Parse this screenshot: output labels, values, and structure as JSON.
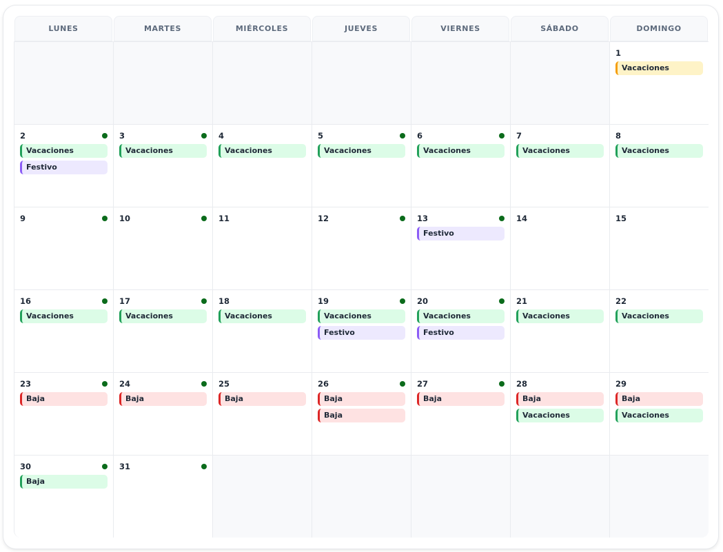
{
  "weekdays": [
    "LUNES",
    "MARTES",
    "MIÉRCOLES",
    "JUEVES",
    "VIERNES",
    "SÁBADO",
    "DOMINGO"
  ],
  "event_colors": {
    "green": "#22a05a",
    "purple": "#8b5cf6",
    "red": "#dc2626",
    "yellow": "#f59e0b"
  },
  "weeks": [
    [
      null,
      null,
      null,
      null,
      null,
      null,
      {
        "day": "1",
        "dot": false,
        "events": [
          {
            "label": "Vacaciones",
            "color": "yellow"
          }
        ]
      }
    ],
    [
      {
        "day": "2",
        "dot": true,
        "events": [
          {
            "label": "Vacaciones",
            "color": "green"
          },
          {
            "label": "Festivo",
            "color": "purple"
          }
        ]
      },
      {
        "day": "3",
        "dot": true,
        "events": [
          {
            "label": "Vacaciones",
            "color": "green"
          }
        ]
      },
      {
        "day": "4",
        "dot": false,
        "events": [
          {
            "label": "Vacaciones",
            "color": "green"
          }
        ]
      },
      {
        "day": "5",
        "dot": true,
        "events": [
          {
            "label": "Vacaciones",
            "color": "green"
          }
        ]
      },
      {
        "day": "6",
        "dot": true,
        "events": [
          {
            "label": "Vacaciones",
            "color": "green"
          }
        ]
      },
      {
        "day": "7",
        "dot": false,
        "events": [
          {
            "label": "Vacaciones",
            "color": "green"
          }
        ]
      },
      {
        "day": "8",
        "dot": false,
        "events": [
          {
            "label": "Vacaciones",
            "color": "green"
          }
        ]
      }
    ],
    [
      {
        "day": "9",
        "dot": true,
        "events": []
      },
      {
        "day": "10",
        "dot": true,
        "events": []
      },
      {
        "day": "11",
        "dot": false,
        "events": []
      },
      {
        "day": "12",
        "dot": true,
        "events": []
      },
      {
        "day": "13",
        "dot": true,
        "events": [
          {
            "label": "Festivo",
            "color": "purple"
          }
        ]
      },
      {
        "day": "14",
        "dot": false,
        "events": []
      },
      {
        "day": "15",
        "dot": false,
        "events": []
      }
    ],
    [
      {
        "day": "16",
        "dot": true,
        "events": [
          {
            "label": "Vacaciones",
            "color": "green"
          }
        ]
      },
      {
        "day": "17",
        "dot": true,
        "events": [
          {
            "label": "Vacaciones",
            "color": "green"
          }
        ]
      },
      {
        "day": "18",
        "dot": false,
        "events": [
          {
            "label": "Vacaciones",
            "color": "green"
          }
        ]
      },
      {
        "day": "19",
        "dot": true,
        "events": [
          {
            "label": "Vacaciones",
            "color": "green"
          },
          {
            "label": "Festivo",
            "color": "purple"
          }
        ]
      },
      {
        "day": "20",
        "dot": true,
        "events": [
          {
            "label": "Vacaciones",
            "color": "green"
          },
          {
            "label": "Festivo",
            "color": "purple"
          }
        ]
      },
      {
        "day": "21",
        "dot": false,
        "events": [
          {
            "label": "Vacaciones",
            "color": "green"
          }
        ]
      },
      {
        "day": "22",
        "dot": false,
        "events": [
          {
            "label": "Vacaciones",
            "color": "green"
          }
        ]
      }
    ],
    [
      {
        "day": "23",
        "dot": true,
        "events": [
          {
            "label": "Baja",
            "color": "red"
          }
        ]
      },
      {
        "day": "24",
        "dot": true,
        "events": [
          {
            "label": "Baja",
            "color": "red"
          }
        ]
      },
      {
        "day": "25",
        "dot": false,
        "events": [
          {
            "label": "Baja",
            "color": "red"
          }
        ]
      },
      {
        "day": "26",
        "dot": true,
        "events": [
          {
            "label": "Baja",
            "color": "red"
          },
          {
            "label": "Baja",
            "color": "red"
          }
        ]
      },
      {
        "day": "27",
        "dot": true,
        "events": [
          {
            "label": "Baja",
            "color": "red"
          }
        ]
      },
      {
        "day": "28",
        "dot": false,
        "events": [
          {
            "label": "Baja",
            "color": "red"
          },
          {
            "label": "Vacaciones",
            "color": "green"
          }
        ]
      },
      {
        "day": "29",
        "dot": false,
        "events": [
          {
            "label": "Baja",
            "color": "red"
          },
          {
            "label": "Vacaciones",
            "color": "green"
          }
        ]
      }
    ],
    [
      {
        "day": "30",
        "dot": true,
        "events": [
          {
            "label": "Baja",
            "color": "green"
          }
        ]
      },
      {
        "day": "31",
        "dot": true,
        "events": []
      },
      null,
      null,
      null,
      null,
      null
    ]
  ]
}
